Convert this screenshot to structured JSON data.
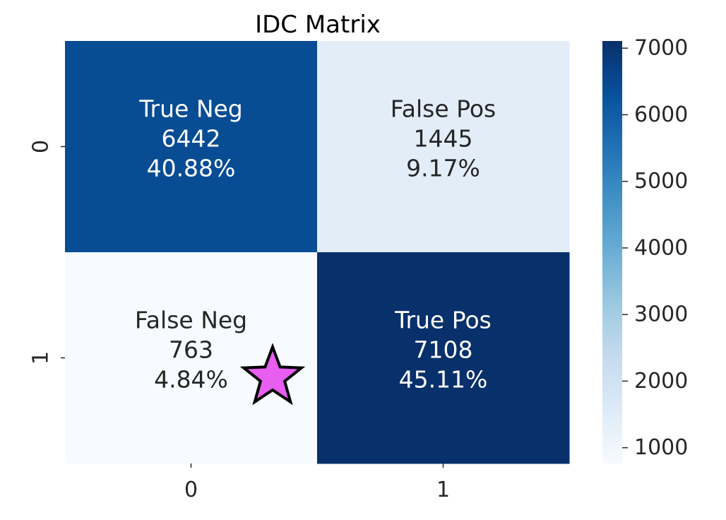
{
  "chart_data": {
    "type": "heatmap",
    "title": "IDC Matrix",
    "xlabel": "",
    "ylabel": "",
    "x_tick_labels": [
      "0",
      "1"
    ],
    "y_tick_labels": [
      "0",
      "1"
    ],
    "cells": [
      [
        {
          "label": "True Neg",
          "count_text": "6442",
          "value": 6442,
          "percent_text": "40.88%"
        },
        {
          "label": "False Pos",
          "count_text": "1445",
          "value": 1445,
          "percent_text": "9.17%"
        }
      ],
      [
        {
          "label": "False Neg",
          "count_text": "763",
          "value": 763,
          "percent_text": "4.84%"
        },
        {
          "label": "True Pos",
          "count_text": "7108",
          "value": 7108,
          "percent_text": "45.11%"
        }
      ]
    ],
    "colormap": "Blues",
    "color_range": [
      763,
      7108
    ],
    "colorbar": {
      "ticks": [
        1000,
        2000,
        3000,
        4000,
        5000,
        6000,
        7000
      ],
      "tick_labels": [
        "1000",
        "2000",
        "3000",
        "4000",
        "5000",
        "6000",
        "7000"
      ]
    },
    "grid": false
  },
  "annotation": {
    "marker": "star-icon",
    "color": "#e75ef0",
    "stroke": "#000000"
  },
  "colors": {
    "text_dark": "#262626",
    "text_light": "#ffffff",
    "tick": "#262626"
  }
}
